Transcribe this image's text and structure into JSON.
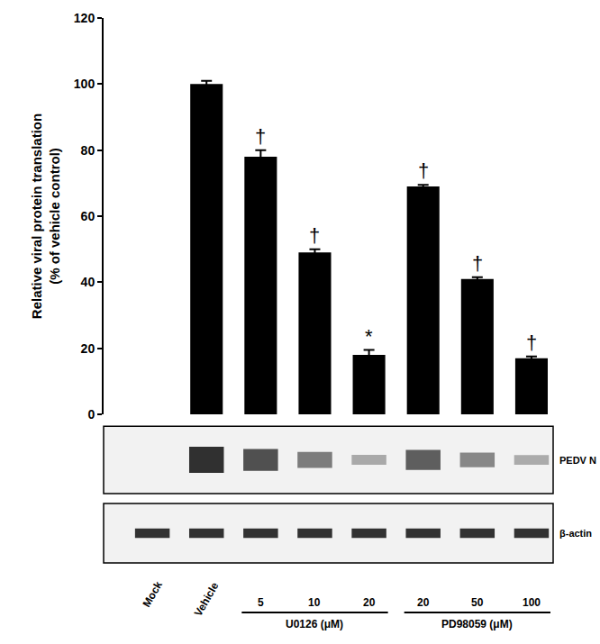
{
  "chart_data": {
    "type": "bar",
    "ylabel": "Relative viral protein translation\n(% of vehicle control)",
    "categories": [
      "Mock",
      "Vehicle",
      "5",
      "10",
      "20",
      "20",
      "50",
      "100"
    ],
    "values": [
      null,
      100,
      78,
      49,
      18,
      69,
      41,
      17
    ],
    "errors": [
      null,
      1,
      2,
      1,
      1.5,
      0.5,
      0.5,
      0.5
    ],
    "significance": [
      null,
      null,
      "†",
      "†",
      "*",
      "†",
      "†",
      "†"
    ],
    "groups": [
      {
        "label": "U0126 (μM)",
        "first": 2,
        "last": 4
      },
      {
        "label": "PD98059 (μM)",
        "first": 5,
        "last": 7
      }
    ],
    "blots": [
      {
        "label": "PEDV N"
      },
      {
        "label": "β-actin"
      }
    ],
    "color": "#000000",
    "ylim": [
      0,
      120
    ],
    "yticks": [
      0,
      20,
      40,
      60,
      80,
      100,
      120
    ],
    "grid": false
  }
}
